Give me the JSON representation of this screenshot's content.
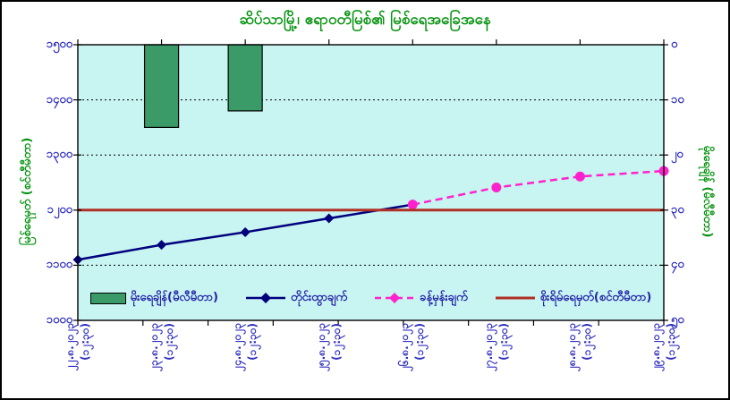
{
  "chart_data": {
    "type": "combo",
    "title": "ဆိပ်သာမြို့၊ ဧရာဝတီမြစ်၏ မြစ်ရေအခြေအနေ",
    "categories": [
      "၂၂.၈.၂၀၂၃",
      "၂၃.၈.၂၀၂၃",
      "၂၄.၈.၂၀၂၃",
      "၂၅.၈.၂၀၂၃",
      "၂၆.၈.၂၀၂၃",
      "၂၇.၈.၂၀၂၃",
      "၂၈.၈.၂၀၂၃",
      "၂၉.၈.၂၀၂၃"
    ],
    "category_sub_label": "(၁၂:၃၀)",
    "left_axis": {
      "title": "မြစ်ရေမှတ် (စင်တီမီတာ)",
      "min": 1000,
      "max": 1500,
      "tick_labels": [
        "၁၅၀၀",
        "၁၄၀၀",
        "၁၃၀၀",
        "၁၂၀၀",
        "၁၁၀၀",
        "၁၀၀၀"
      ],
      "tick_values": [
        1500,
        1400,
        1300,
        1200,
        1100,
        1000
      ]
    },
    "right_axis": {
      "title": "မိုးရေချိန် (မီလီမီတာ)",
      "min": 0,
      "max": 50,
      "inverted": true,
      "tick_labels": [
        "၀",
        "၁၀",
        "၂၀",
        "၃၀",
        "၄၀",
        "၅၀"
      ],
      "tick_values": [
        0,
        10,
        20,
        30,
        40,
        50
      ]
    },
    "series": [
      {
        "name": "မိုးရေချိန်(မီလီမီတာ)",
        "type": "bar",
        "axis": "right",
        "color": "#3a9a68",
        "values": [
          null,
          15,
          12,
          null,
          null,
          null,
          null,
          null
        ]
      },
      {
        "name": "တိုင်းထွာချက်",
        "type": "line",
        "marker": "diamond",
        "axis": "left",
        "color": "#00007d",
        "values": [
          1110,
          1137,
          1160,
          1185,
          1210,
          null,
          null,
          null
        ]
      },
      {
        "name": "ခန့်မှန်းချက်",
        "type": "dashed_line",
        "marker": "circle",
        "axis": "left",
        "color": "#ff22cc",
        "values": [
          null,
          null,
          null,
          null,
          1210,
          1241,
          1261,
          1271
        ]
      },
      {
        "name": "စိုးရိမ်ရေမှတ်(စင်တီမီတာ)",
        "type": "horizontal_line",
        "axis": "left",
        "color": "#b03024",
        "value": 1200
      }
    ],
    "plot_background": "#c8f4f2",
    "grid": "dotted-horizontal",
    "legend_position": "bottom-inside"
  },
  "colors": {
    "title_green": "#069310",
    "tick_label_blue": "#2f2fc0",
    "legend_text_blue": "#2222a8",
    "frame_black": "#000000",
    "plot_cyan": "#c8f4f2",
    "bar_green": "#3a9a68",
    "observed_navy": "#00007d",
    "forecast_magenta": "#ff22cc",
    "danger_red": "#b03024"
  }
}
